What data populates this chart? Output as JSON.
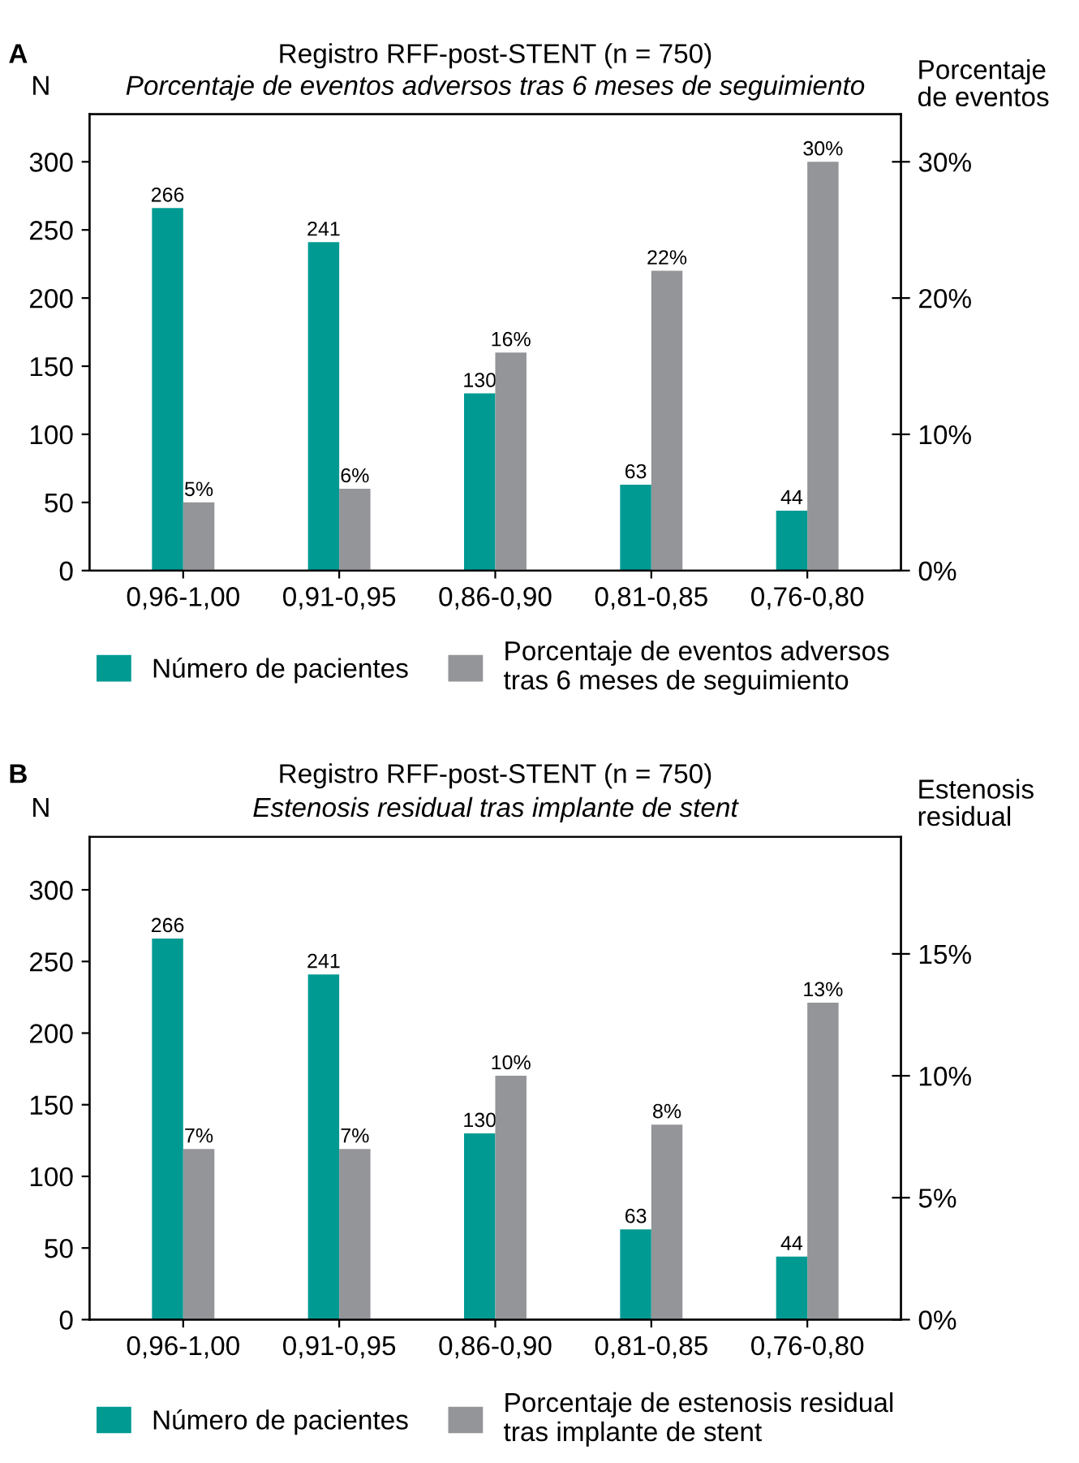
{
  "chart_data": [
    {
      "type": "bar",
      "title": "Registro RFF-post-STENT (n = 750)",
      "subtitle": "Porcentaje de eventos adversos tras 6 meses de seguimiento",
      "ylabel": "N",
      "y2label": "Porcentaje\nde eventos",
      "annotations": [
        "A"
      ],
      "categories": [
        "0,96-1,00",
        "0,91-0,95",
        "0,86-0,90",
        "0,81-0,85",
        "0,76-0,80"
      ],
      "series": [
        {
          "name": "Número de pacientes",
          "color": "#009a93",
          "values": [
            266,
            241,
            130,
            63,
            44
          ]
        },
        {
          "name": "Porcentaje de eventos adversos\ntras 6 meses de seguimiento",
          "color": "#939598",
          "axis": "y2",
          "values": [
            5,
            6,
            16,
            22,
            30
          ],
          "value_labels": [
            "5%",
            "6%",
            "16%",
            "22%",
            "30%"
          ]
        }
      ],
      "ylim": [
        0,
        335
      ],
      "yticks": [
        0,
        50,
        100,
        150,
        200,
        250,
        300
      ],
      "y2lim": [
        0,
        33.5
      ],
      "y2ticks": [
        {
          "value": 0,
          "label": "0%"
        },
        {
          "value": 10,
          "label": "10%"
        },
        {
          "value": 20,
          "label": "20%"
        },
        {
          "value": 30,
          "label": "30%"
        }
      ],
      "data_labels": true,
      "legend": "bottom",
      "grid": false
    },
    {
      "type": "bar",
      "title": "Registro RFF-post-STENT (n = 750)",
      "subtitle": "Estenosis residual tras implante de stent",
      "ylabel": "N",
      "y2label": "Estenosis\nresidual",
      "annotations": [
        "B"
      ],
      "categories": [
        "0,96-1,00",
        "0,91-0,95",
        "0,86-0,90",
        "0,81-0,85",
        "0,76-0,80"
      ],
      "series": [
        {
          "name": "Número de pacientes",
          "color": "#009a93",
          "values": [
            266,
            241,
            130,
            63,
            44
          ]
        },
        {
          "name": "Porcentaje de estenosis residual\ntras implante de stent",
          "color": "#939598",
          "axis": "y2",
          "values": [
            7,
            7,
            10,
            8,
            13
          ],
          "value_labels": [
            "7%",
            "7%",
            "10%",
            "8%",
            "13%"
          ]
        }
      ],
      "ylim": [
        0,
        337
      ],
      "yticks": [
        0,
        50,
        100,
        150,
        200,
        250,
        300
      ],
      "y2lim": [
        0,
        19.8
      ],
      "y2ticks": [
        {
          "value": 0,
          "label": "0%"
        },
        {
          "value": 5,
          "label": "5%"
        },
        {
          "value": 10,
          "label": "10%"
        },
        {
          "value": 15,
          "label": "15%"
        }
      ],
      "data_labels": true,
      "legend": "bottom",
      "grid": false
    }
  ]
}
